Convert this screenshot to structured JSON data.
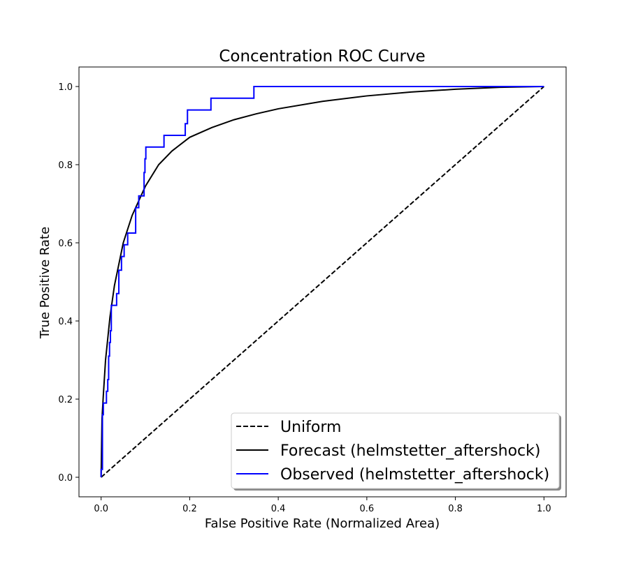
{
  "chart_data": {
    "type": "line",
    "title": "Concentration ROC Curve",
    "xlabel": "False Positive Rate (Normalized Area)",
    "ylabel": "True Positive Rate",
    "xlim": [
      -0.05,
      1.05
    ],
    "ylim": [
      -0.05,
      1.05
    ],
    "xticks": [
      0.0,
      0.2,
      0.4,
      0.6,
      0.8,
      1.0
    ],
    "yticks": [
      0.0,
      0.2,
      0.4,
      0.6,
      0.8,
      1.0
    ],
    "xtick_labels": [
      "0.0",
      "0.2",
      "0.4",
      "0.6",
      "0.8",
      "1.0"
    ],
    "ytick_labels": [
      "0.0",
      "0.2",
      "0.4",
      "0.6",
      "0.8",
      "1.0"
    ],
    "grid": false,
    "legend_position": "lower-right",
    "series": [
      {
        "name": "Uniform",
        "color": "#000000",
        "style": "dashed",
        "x": [
          0.0,
          1.0
        ],
        "y": [
          0.0,
          1.0
        ]
      },
      {
        "name": "Forecast (helmstetter_aftershock)",
        "color": "#000000",
        "style": "solid",
        "x": [
          0.0,
          0.002,
          0.005,
          0.01,
          0.02,
          0.03,
          0.05,
          0.07,
          0.1,
          0.13,
          0.16,
          0.2,
          0.25,
          0.3,
          0.35,
          0.4,
          0.5,
          0.6,
          0.7,
          0.8,
          0.9,
          1.0
        ],
        "y": [
          0.0,
          0.15,
          0.21,
          0.3,
          0.41,
          0.49,
          0.6,
          0.67,
          0.745,
          0.8,
          0.835,
          0.87,
          0.895,
          0.915,
          0.93,
          0.943,
          0.962,
          0.976,
          0.986,
          0.993,
          0.998,
          1.0
        ]
      },
      {
        "name": "Observed (helmstetter_aftershock)",
        "color": "#0000ff",
        "style": "step",
        "x": [
          0.0,
          0.0,
          0.003,
          0.003,
          0.005,
          0.005,
          0.012,
          0.012,
          0.015,
          0.015,
          0.017,
          0.017,
          0.019,
          0.019,
          0.021,
          0.021,
          0.023,
          0.023,
          0.035,
          0.035,
          0.04,
          0.04,
          0.046,
          0.046,
          0.052,
          0.052,
          0.06,
          0.06,
          0.078,
          0.078,
          0.085,
          0.085,
          0.097,
          0.097,
          0.099,
          0.099,
          0.101,
          0.101,
          0.142,
          0.142,
          0.19,
          0.19,
          0.195,
          0.195,
          0.248,
          0.248,
          0.345,
          0.345,
          1.0
        ],
        "y": [
          0.0,
          0.02,
          0.02,
          0.16,
          0.16,
          0.19,
          0.19,
          0.22,
          0.22,
          0.25,
          0.25,
          0.31,
          0.31,
          0.345,
          0.345,
          0.375,
          0.375,
          0.44,
          0.44,
          0.47,
          0.47,
          0.53,
          0.53,
          0.565,
          0.565,
          0.595,
          0.595,
          0.625,
          0.625,
          0.69,
          0.69,
          0.72,
          0.72,
          0.78,
          0.78,
          0.815,
          0.815,
          0.845,
          0.845,
          0.875,
          0.875,
          0.905,
          0.905,
          0.94,
          0.94,
          0.97,
          0.97,
          1.0,
          1.0
        ]
      }
    ]
  }
}
